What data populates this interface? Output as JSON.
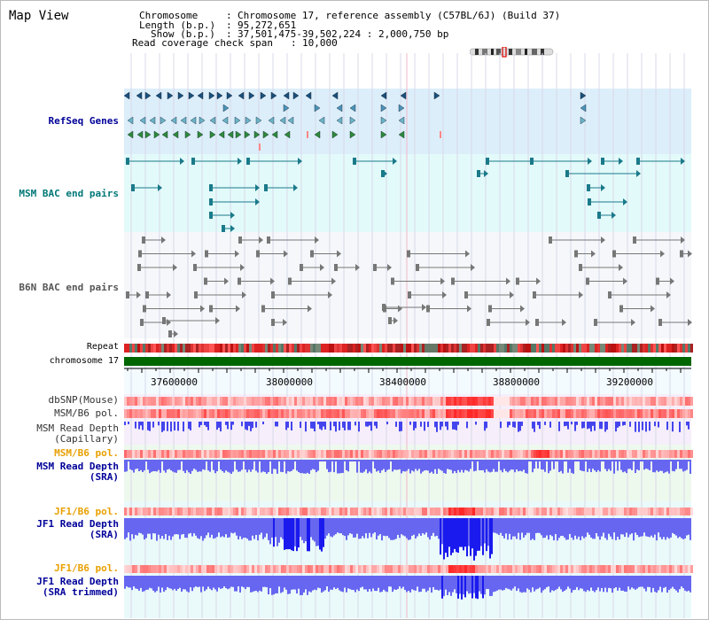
{
  "title": "Map View",
  "info": {
    "chromosome_label": "Chromosome",
    "chromosome_value": "Chromosome 17, reference assembly (C57BL/6J) (Build 37)",
    "length_label": "Length (b.p.)",
    "length_value": "95,272,651",
    "show_label": "Show (b.p.)",
    "show_value": "37,501,475-39,502,224 : 2,000,750 bp",
    "coverage_label": "Read coverage check span",
    "coverage_value": "10,000"
  },
  "tracks": {
    "refseq": "RefSeq Genes",
    "msm_bac": "MSM BAC end pairs",
    "b6n_bac": "B6N BAC end pairs",
    "repeat": "Repeat",
    "chromosome": "chromosome 17",
    "dbsnp": "dbSNP(Mouse)",
    "msm_pol_1": "MSM/B6 pol.",
    "msm_depth_cap_1": "MSM Read Depth",
    "msm_depth_cap_2": "(Capillary)",
    "msm_pol_2": "MSM/B6 pol.",
    "msm_depth_sra_1": "MSM Read Depth",
    "msm_depth_sra_2": "(SRA)",
    "jf1_pol_1": "JF1/B6 pol.",
    "jf1_depth_sra_1": "JF1 Read Depth",
    "jf1_depth_sra_2": "(SRA)",
    "jf1_pol_2": "JF1/B6 pol.",
    "jf1_depth_trim_1": "JF1 Read Depth",
    "jf1_depth_trim_2": "(SRA trimmed)"
  },
  "axis_ticks": [
    "37600000",
    "38000000",
    "38400000",
    "38800000",
    "39200000"
  ],
  "colors": {
    "refseq_bg": "#dff0fa",
    "bac_bg": "#e6fbfb",
    "b6n_bg": "#f4f6fa",
    "chrom_green": "#006600",
    "depth_blue": "#4444ee",
    "pol_red": "#ee3333",
    "orange_label": "#e8a000",
    "navy_label": "#000099",
    "teal_label": "#007777"
  }
}
